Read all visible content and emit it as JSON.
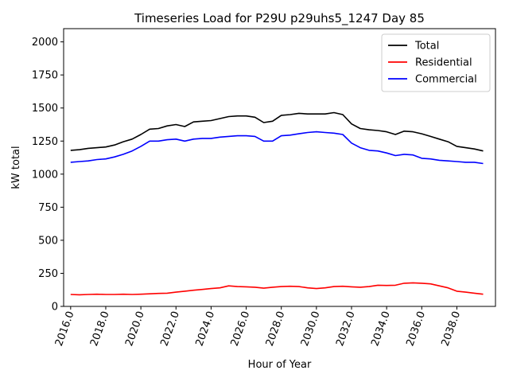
{
  "chart_data": {
    "type": "line",
    "title": "Timeseries Load for P29U p29uhs5_1247  Day 85",
    "xlabel": "Hour of Year",
    "ylabel": "kW total",
    "xlim": [
      2015.6,
      2040.2
    ],
    "ylim": [
      0,
      2100
    ],
    "x_ticks": [
      2016,
      2018,
      2020,
      2022,
      2024,
      2026,
      2028,
      2030,
      2032,
      2034,
      2036,
      2038
    ],
    "x_tick_labels": [
      "2016.0",
      "2018.0",
      "2020.0",
      "2022.0",
      "2024.0",
      "2026.0",
      "2028.0",
      "2030.0",
      "2032.0",
      "2034.0",
      "2036.0",
      "2038.0"
    ],
    "y_ticks": [
      0,
      250,
      500,
      750,
      1000,
      1250,
      1500,
      1750,
      2000
    ],
    "y_tick_labels": [
      "0",
      "250",
      "500",
      "750",
      "1000",
      "1250",
      "1500",
      "1750",
      "2000"
    ],
    "legend_position": "top-right",
    "x": [
      2016.0,
      2016.5,
      2017.0,
      2017.5,
      2018.0,
      2018.5,
      2019.0,
      2019.5,
      2020.0,
      2020.5,
      2021.0,
      2021.5,
      2022.0,
      2022.5,
      2023.0,
      2023.5,
      2024.0,
      2024.5,
      2025.0,
      2025.5,
      2026.0,
      2026.5,
      2027.0,
      2027.5,
      2028.0,
      2028.5,
      2029.0,
      2029.5,
      2030.0,
      2030.5,
      2031.0,
      2031.5,
      2032.0,
      2032.5,
      2033.0,
      2033.5,
      2034.0,
      2034.5,
      2035.0,
      2035.5,
      2036.0,
      2036.5,
      2037.0,
      2037.5,
      2038.0,
      2038.5,
      2039.0,
      2039.5
    ],
    "series": [
      {
        "name": "Total",
        "color": "#000000",
        "values": [
          1180,
          1185,
          1195,
          1200,
          1205,
          1220,
          1245,
          1265,
          1300,
          1340,
          1345,
          1365,
          1375,
          1360,
          1395,
          1400,
          1405,
          1420,
          1435,
          1440,
          1440,
          1430,
          1390,
          1400,
          1445,
          1450,
          1460,
          1455,
          1455,
          1455,
          1465,
          1450,
          1380,
          1345,
          1335,
          1330,
          1320,
          1300,
          1325,
          1320,
          1305,
          1285,
          1265,
          1245,
          1210,
          1200,
          1190,
          1175
        ]
      },
      {
        "name": "Residential",
        "color": "#ff0000",
        "values": [
          90,
          88,
          90,
          92,
          90,
          90,
          92,
          90,
          92,
          95,
          98,
          100,
          108,
          115,
          122,
          128,
          135,
          140,
          155,
          150,
          148,
          145,
          138,
          145,
          150,
          152,
          150,
          140,
          135,
          140,
          150,
          152,
          148,
          145,
          150,
          160,
          158,
          160,
          175,
          178,
          175,
          170,
          155,
          140,
          115,
          108,
          100,
          92
        ]
      },
      {
        "name": "Commercial",
        "color": "#0000ff",
        "values": [
          1090,
          1095,
          1100,
          1110,
          1115,
          1130,
          1150,
          1175,
          1210,
          1250,
          1250,
          1260,
          1265,
          1250,
          1265,
          1270,
          1270,
          1280,
          1285,
          1290,
          1290,
          1285,
          1250,
          1250,
          1290,
          1295,
          1305,
          1315,
          1320,
          1315,
          1310,
          1300,
          1235,
          1200,
          1180,
          1175,
          1160,
          1140,
          1150,
          1145,
          1120,
          1115,
          1105,
          1100,
          1095,
          1090,
          1090,
          1080
        ]
      }
    ]
  }
}
